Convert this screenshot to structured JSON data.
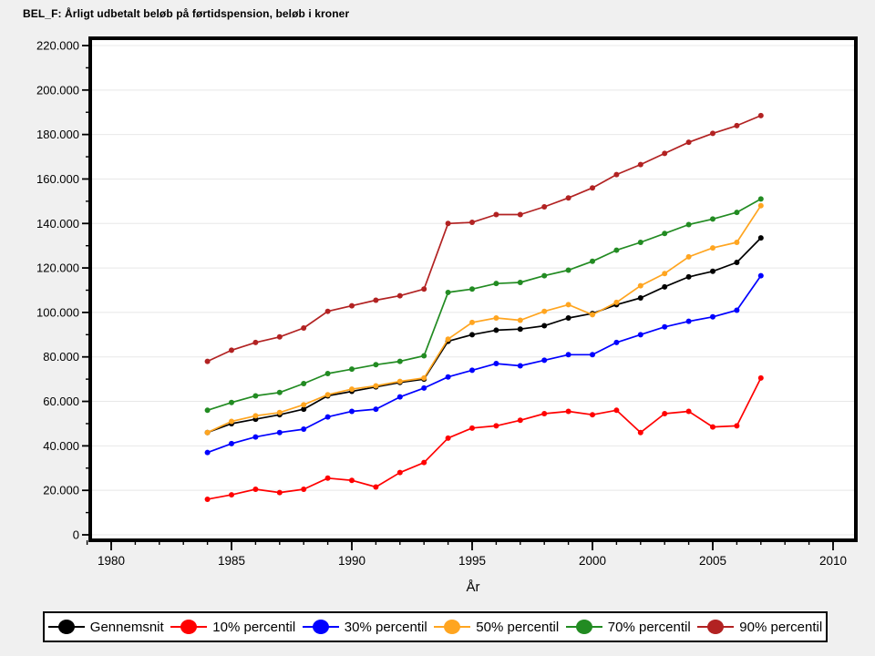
{
  "title": "BEL_F: Årligt udbetalt beløb på førtidspension, beløb i kroner",
  "chart_data": {
    "type": "line",
    "title": "BEL_F: Årligt udbetalt beløb på førtidspension, beløb i kroner",
    "xlabel": "År",
    "ylabel": "",
    "grid": "horizontal",
    "legend_position": "bottom",
    "plot_bg": "#ffffff",
    "page_bg": "#f0f0f0",
    "gridline_color": "#e8e8e8",
    "frame_color": "#000000",
    "xlim": [
      1979.2,
      2010.9
    ],
    "ylim": [
      0,
      220000
    ],
    "x_axis": {
      "major_ticks": [
        1980,
        1985,
        1990,
        1995,
        2000,
        2005,
        2010
      ],
      "tick_labels": [
        "1980",
        "1985",
        "1990",
        "1995",
        "2000",
        "2005",
        "2010"
      ],
      "minor_tick_start": 1979,
      "minor_tick_end": 2010
    },
    "y_axis": {
      "major_ticks": [
        0,
        20000,
        40000,
        60000,
        80000,
        100000,
        120000,
        140000,
        160000,
        180000,
        200000,
        220000
      ],
      "tick_labels": [
        "0",
        "20.000",
        "40.000",
        "60.000",
        "80.000",
        "100.000",
        "120.000",
        "140.000",
        "160.000",
        "180.000",
        "200.000",
        "220.000"
      ]
    },
    "x": [
      1984,
      1985,
      1986,
      1987,
      1988,
      1989,
      1990,
      1991,
      1992,
      1993,
      1994,
      1995,
      1996,
      1997,
      1998,
      1999,
      2000,
      2001,
      2002,
      2003,
      2004,
      2005,
      2006,
      2007
    ],
    "series": [
      {
        "name": "Gennemsnit",
        "color": "#000000",
        "values": [
          46000,
          50000,
          52000,
          54000,
          56500,
          62500,
          64500,
          66500,
          68500,
          70000,
          87000,
          90000,
          92000,
          92500,
          94000,
          97500,
          99500,
          103500,
          106500,
          111500,
          116000,
          118500,
          122500,
          133500
        ]
      },
      {
        "name": "10% percentil",
        "color": "#ff0000",
        "values": [
          16000,
          18000,
          20500,
          19000,
          20500,
          25500,
          24500,
          21500,
          28000,
          32500,
          43500,
          48000,
          49000,
          51500,
          54500,
          55500,
          54000,
          56000,
          46000,
          54500,
          55500,
          48500,
          49000,
          70500
        ]
      },
      {
        "name": "30% percentil",
        "color": "#0000ff",
        "values": [
          37000,
          41000,
          44000,
          46000,
          47500,
          53000,
          55500,
          56500,
          62000,
          66000,
          71000,
          74000,
          77000,
          76000,
          78500,
          81000,
          81000,
          86500,
          90000,
          93500,
          96000,
          98000,
          101000,
          116500
        ]
      },
      {
        "name": "50% percentil",
        "color": "#ffa520",
        "values": [
          46000,
          51000,
          53500,
          55000,
          58500,
          63000,
          65500,
          67000,
          69000,
          70500,
          88000,
          95500,
          97500,
          96500,
          100500,
          103500,
          99000,
          104500,
          112000,
          117500,
          125000,
          129000,
          131500,
          148000
        ]
      },
      {
        "name": "70% percentil",
        "color": "#228b22",
        "values": [
          56000,
          59500,
          62500,
          64000,
          68000,
          72500,
          74500,
          76500,
          78000,
          80500,
          109000,
          110500,
          113000,
          113500,
          116500,
          119000,
          123000,
          128000,
          131500,
          135500,
          139500,
          142000,
          145000,
          151000
        ]
      },
      {
        "name": "90% percentil",
        "color": "#b22222",
        "values": [
          78000,
          83000,
          86500,
          89000,
          93000,
          100500,
          103000,
          105500,
          107500,
          110500,
          140000,
          140500,
          144000,
          144000,
          147500,
          151500,
          156000,
          162000,
          166500,
          171500,
          176500,
          180500,
          184000,
          188500
        ]
      }
    ]
  }
}
